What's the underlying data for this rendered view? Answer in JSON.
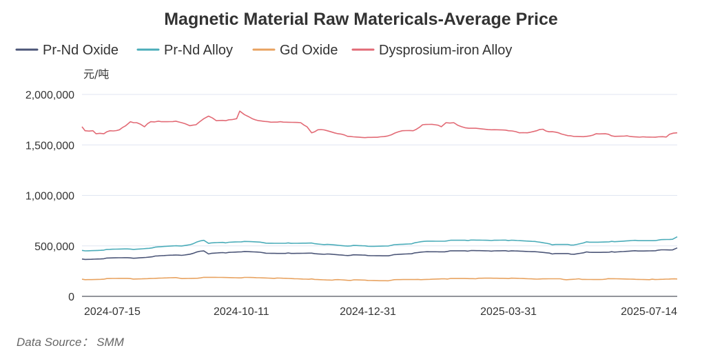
{
  "chart_data": {
    "type": "line",
    "title": "Magnetic Material Raw Matericals-Average Price",
    "xlabel": "",
    "ylabel": "元/吨",
    "ylim": [
      0,
      2000000
    ],
    "y_ticks": [
      0,
      500000,
      1000000,
      1500000,
      2000000
    ],
    "y_tick_labels": [
      "0",
      "500,000",
      "1,000,000",
      "1,500,000",
      "2,000,000"
    ],
    "x_range": [
      "2024-07-01",
      "2025-07-17"
    ],
    "x_tick_labels": [
      "2024-07-15",
      "2024-10-11",
      "2024-12-31",
      "2025-03-31",
      "2025-07-14"
    ],
    "grid": true,
    "legend_position": "top-left",
    "source": "Data Source： SMM",
    "series": [
      {
        "name": "Pr-Nd Oxide",
        "color": "#4b5577",
        "points": [
          [
            "2024-07-01",
            370000
          ],
          [
            "2024-07-15",
            373000
          ],
          [
            "2024-08-01",
            381000
          ],
          [
            "2024-08-15",
            392000
          ],
          [
            "2024-09-01",
            408000
          ],
          [
            "2024-09-10",
            425000
          ],
          [
            "2024-09-17",
            450000
          ],
          [
            "2024-09-20",
            420000
          ],
          [
            "2024-10-01",
            430000
          ],
          [
            "2024-10-11",
            440000
          ],
          [
            "2024-10-25",
            432000
          ],
          [
            "2024-11-10",
            430000
          ],
          [
            "2024-11-25",
            428000
          ],
          [
            "2024-12-05",
            420000
          ],
          [
            "2024-12-20",
            407000
          ],
          [
            "2024-12-31",
            404000
          ],
          [
            "2025-01-15",
            407000
          ],
          [
            "2025-01-28",
            422000
          ],
          [
            "2025-02-05",
            440000
          ],
          [
            "2025-02-20",
            445000
          ],
          [
            "2025-03-05",
            448000
          ],
          [
            "2025-03-20",
            448000
          ],
          [
            "2025-03-31",
            447000
          ],
          [
            "2025-04-15",
            442000
          ],
          [
            "2025-04-28",
            420000
          ],
          [
            "2025-05-10",
            418000
          ],
          [
            "2025-05-20",
            440000
          ],
          [
            "2025-06-05",
            442000
          ],
          [
            "2025-06-20",
            452000
          ],
          [
            "2025-07-05",
            458000
          ],
          [
            "2025-07-14",
            460000
          ],
          [
            "2025-07-17",
            480000
          ]
        ]
      },
      {
        "name": "Pr-Nd Alloy",
        "color": "#4aacb9",
        "points": [
          [
            "2024-07-01",
            455000
          ],
          [
            "2024-07-15",
            458000
          ],
          [
            "2024-08-01",
            468000
          ],
          [
            "2024-08-15",
            480000
          ],
          [
            "2024-09-01",
            500000
          ],
          [
            "2024-09-10",
            520000
          ],
          [
            "2024-09-17",
            555000
          ],
          [
            "2024-09-20",
            525000
          ],
          [
            "2024-10-01",
            530000
          ],
          [
            "2024-10-11",
            540000
          ],
          [
            "2024-10-25",
            532000
          ],
          [
            "2024-11-10",
            530000
          ],
          [
            "2024-11-25",
            528000
          ],
          [
            "2024-12-05",
            515000
          ],
          [
            "2024-12-20",
            500000
          ],
          [
            "2024-12-31",
            496000
          ],
          [
            "2025-01-15",
            505000
          ],
          [
            "2025-01-28",
            520000
          ],
          [
            "2025-02-05",
            545000
          ],
          [
            "2025-02-20",
            550000
          ],
          [
            "2025-03-05",
            552000
          ],
          [
            "2025-03-20",
            553000
          ],
          [
            "2025-03-31",
            552000
          ],
          [
            "2025-04-15",
            545000
          ],
          [
            "2025-04-28",
            510000
          ],
          [
            "2025-05-10",
            508000
          ],
          [
            "2025-05-20",
            540000
          ],
          [
            "2025-06-05",
            545000
          ],
          [
            "2025-06-20",
            555000
          ],
          [
            "2025-07-05",
            558000
          ],
          [
            "2025-07-14",
            565000
          ],
          [
            "2025-07-17",
            590000
          ]
        ]
      },
      {
        "name": "Gd Oxide",
        "color": "#e8a25f",
        "points": [
          [
            "2024-07-01",
            170000
          ],
          [
            "2024-07-15",
            170000
          ],
          [
            "2024-08-01",
            176000
          ],
          [
            "2024-09-01",
            181000
          ],
          [
            "2024-09-15",
            183000
          ],
          [
            "2024-10-11",
            183000
          ],
          [
            "2024-11-01",
            178000
          ],
          [
            "2024-11-25",
            173000
          ],
          [
            "2024-12-10",
            165000
          ],
          [
            "2024-12-20",
            158000
          ],
          [
            "2024-12-31",
            158000
          ],
          [
            "2025-01-15",
            160000
          ],
          [
            "2025-02-01",
            168000
          ],
          [
            "2025-02-20",
            171000
          ],
          [
            "2025-03-10",
            174000
          ],
          [
            "2025-03-31",
            176000
          ],
          [
            "2025-04-20",
            172000
          ],
          [
            "2025-05-05",
            168000
          ],
          [
            "2025-05-15",
            174000
          ],
          [
            "2025-06-01",
            170000
          ],
          [
            "2025-07-01",
            170000
          ],
          [
            "2025-07-17",
            172000
          ]
        ]
      },
      {
        "name": "Dysprosium-iron Alloy",
        "color": "#e26a75",
        "points": [
          [
            "2024-07-01",
            1680000
          ],
          [
            "2024-07-03",
            1640000
          ],
          [
            "2024-07-08",
            1640000
          ],
          [
            "2024-07-10",
            1610000
          ],
          [
            "2024-07-15",
            1610000
          ],
          [
            "2024-07-19",
            1640000
          ],
          [
            "2024-07-25",
            1650000
          ],
          [
            "2024-07-29",
            1690000
          ],
          [
            "2024-08-01",
            1730000
          ],
          [
            "2024-08-05",
            1720000
          ],
          [
            "2024-08-10",
            1680000
          ],
          [
            "2024-08-14",
            1730000
          ],
          [
            "2024-08-19",
            1735000
          ],
          [
            "2024-08-30",
            1735000
          ],
          [
            "2024-09-05",
            1710000
          ],
          [
            "2024-09-08",
            1690000
          ],
          [
            "2024-09-12",
            1700000
          ],
          [
            "2024-09-17",
            1760000
          ],
          [
            "2024-09-20",
            1785000
          ],
          [
            "2024-09-25",
            1740000
          ],
          [
            "2024-10-01",
            1740000
          ],
          [
            "2024-10-05",
            1750000
          ],
          [
            "2024-10-08",
            1760000
          ],
          [
            "2024-10-10",
            1835000
          ],
          [
            "2024-10-13",
            1800000
          ],
          [
            "2024-10-18",
            1760000
          ],
          [
            "2024-10-22",
            1740000
          ],
          [
            "2024-10-28",
            1730000
          ],
          [
            "2024-11-05",
            1730000
          ],
          [
            "2024-11-18",
            1720000
          ],
          [
            "2024-11-22",
            1680000
          ],
          [
            "2024-11-25",
            1620000
          ],
          [
            "2024-11-29",
            1650000
          ],
          [
            "2024-12-05",
            1640000
          ],
          [
            "2024-12-12",
            1610000
          ],
          [
            "2024-12-18",
            1585000
          ],
          [
            "2024-12-31",
            1575000
          ],
          [
            "2025-01-08",
            1580000
          ],
          [
            "2025-01-15",
            1600000
          ],
          [
            "2025-01-22",
            1640000
          ],
          [
            "2025-01-29",
            1640000
          ],
          [
            "2025-02-04",
            1700000
          ],
          [
            "2025-02-12",
            1700000
          ],
          [
            "2025-02-16",
            1680000
          ],
          [
            "2025-02-19",
            1720000
          ],
          [
            "2025-02-24",
            1720000
          ],
          [
            "2025-03-01",
            1680000
          ],
          [
            "2025-03-08",
            1665000
          ],
          [
            "2025-03-20",
            1650000
          ],
          [
            "2025-03-31",
            1640000
          ],
          [
            "2025-04-07",
            1620000
          ],
          [
            "2025-04-12",
            1620000
          ],
          [
            "2025-04-18",
            1640000
          ],
          [
            "2025-04-22",
            1655000
          ],
          [
            "2025-04-26",
            1630000
          ],
          [
            "2025-05-02",
            1620000
          ],
          [
            "2025-05-10",
            1590000
          ],
          [
            "2025-05-20",
            1585000
          ],
          [
            "2025-05-26",
            1610000
          ],
          [
            "2025-06-01",
            1610000
          ],
          [
            "2025-06-05",
            1590000
          ],
          [
            "2025-06-15",
            1590000
          ],
          [
            "2025-06-25",
            1580000
          ],
          [
            "2025-07-05",
            1580000
          ],
          [
            "2025-07-10",
            1578000
          ],
          [
            "2025-07-12",
            1605000
          ],
          [
            "2025-07-17",
            1620000
          ]
        ]
      }
    ]
  }
}
